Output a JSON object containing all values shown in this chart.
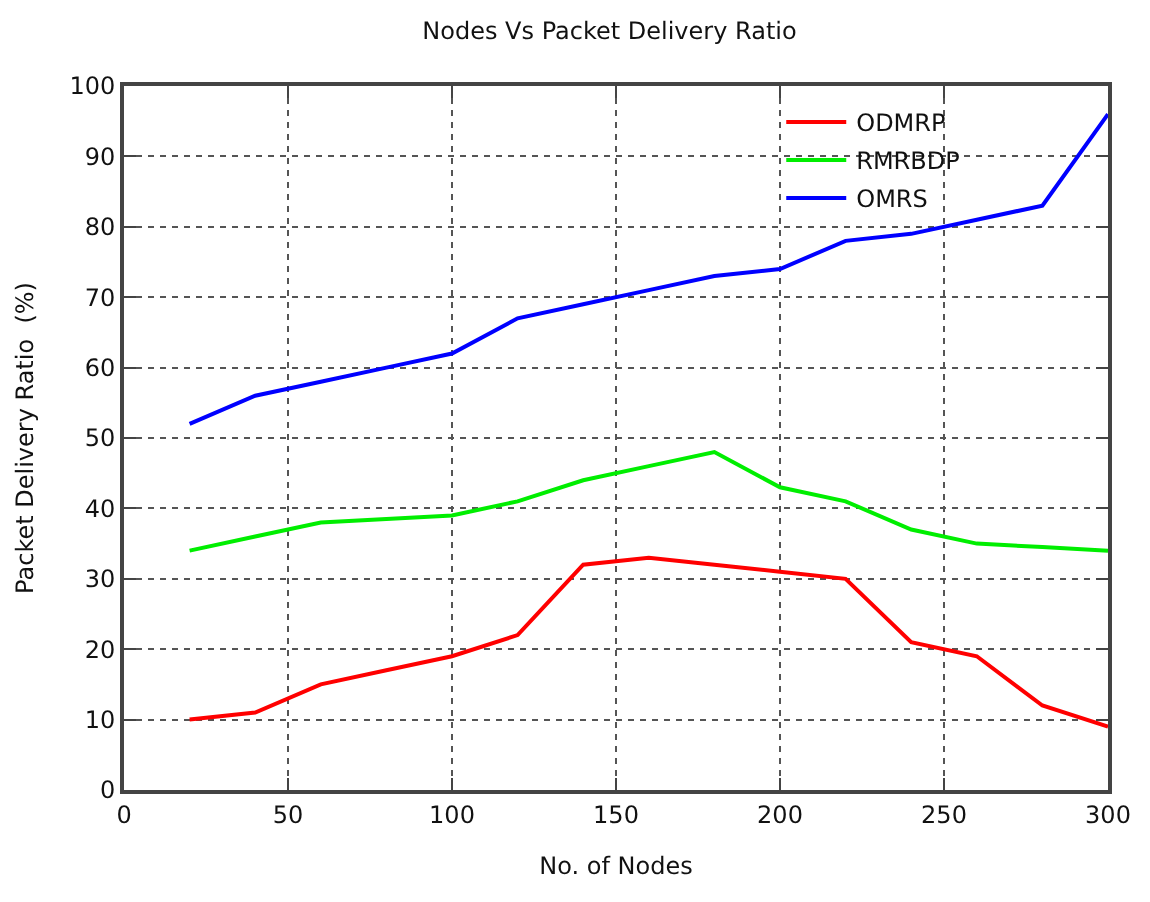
{
  "chart_data": {
    "type": "line",
    "title": "Nodes Vs Packet Delivery Ratio",
    "xlabel": "No. of Nodes",
    "ylabel": "Packet Delivery Ratio  (%)",
    "x": [
      20,
      40,
      60,
      80,
      100,
      120,
      140,
      160,
      180,
      200,
      220,
      240,
      260,
      280,
      300
    ],
    "series": [
      {
        "name": "ODMRP",
        "color": "#ff0000",
        "values": [
          10,
          11,
          15,
          17,
          19,
          22,
          32,
          33,
          32,
          31,
          30,
          21,
          19,
          12,
          9
        ]
      },
      {
        "name": "RMRBDP",
        "color": "#00ee00",
        "values": [
          34,
          36,
          38,
          38.5,
          39,
          41,
          44,
          46,
          48,
          43,
          41,
          37,
          35,
          34.5,
          34
        ]
      },
      {
        "name": "OMRS",
        "color": "#0000ff",
        "values": [
          52,
          56,
          58,
          60,
          62,
          67,
          69,
          71,
          73,
          74,
          78,
          79,
          81,
          83,
          96
        ]
      }
    ],
    "xlim": [
      0,
      300
    ],
    "xticks": [
      0,
      50,
      100,
      150,
      200,
      250,
      300
    ],
    "ylim": [
      0,
      100
    ],
    "yticks": [
      0,
      10,
      20,
      30,
      40,
      50,
      60,
      70,
      80,
      90,
      100
    ],
    "grid": true,
    "legend": "top right",
    "marker": "none",
    "line_style": "solid"
  }
}
